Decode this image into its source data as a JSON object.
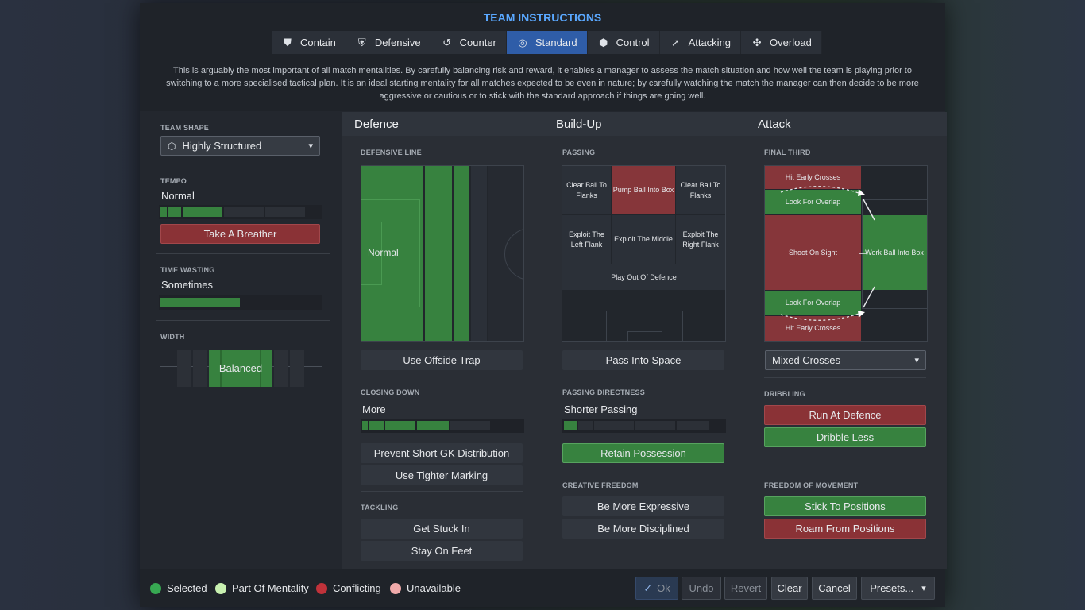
{
  "title": "TEAM INSTRUCTIONS",
  "tabs": [
    {
      "label": "Contain",
      "icon": "contain-icon"
    },
    {
      "label": "Defensive",
      "icon": "shield-icon"
    },
    {
      "label": "Counter",
      "icon": "counter-icon"
    },
    {
      "label": "Standard",
      "icon": "standard-icon",
      "active": true
    },
    {
      "label": "Control",
      "icon": "control-icon"
    },
    {
      "label": "Attacking",
      "icon": "attacking-icon"
    },
    {
      "label": "Overload",
      "icon": "overload-icon"
    }
  ],
  "description": "This is arguably the most important of all match mentalities. By carefully balancing risk and reward, it enables a manager to assess the match situation and how well the team is playing prior to switching to a more specialised tactical plan. It is an ideal starting mentality for all matches expected to be even in nature; by carefully watching the match the manager can then decide to be more aggressive or cautious or to stick with the standard approach if things are going well.",
  "left": {
    "team_shape_label": "TEAM SHAPE",
    "team_shape_value": "Highly Structured",
    "tempo_label": "TEMPO",
    "tempo_value": "Normal",
    "tempo_level": 3,
    "tempo_levels": 5,
    "take_breather": "Take A Breather",
    "time_wasting_label": "TIME WASTING",
    "time_wasting_value": "Sometimes",
    "time_wasting_level": 2,
    "time_wasting_levels": 4,
    "width_label": "WIDTH",
    "width_value": "Balanced"
  },
  "defence": {
    "heading": "Defence",
    "defensive_line_label": "DEFENSIVE LINE",
    "defensive_line_value": "Normal",
    "offside_trap": "Use Offside Trap",
    "closing_down_label": "CLOSING DOWN",
    "closing_down_value": "More",
    "closing_down_level": 4,
    "closing_down_levels": 5,
    "prevent_gk": "Prevent Short GK Distribution",
    "tighter_marking": "Use Tighter Marking",
    "tackling_label": "TACKLING",
    "get_stuck_in": "Get Stuck In",
    "stay_on_feet": "Stay On Feet"
  },
  "buildup": {
    "heading": "Build-Up",
    "passing_label": "PASSING",
    "zones": {
      "clear_left": "Clear Ball To Flanks",
      "pump": "Pump Ball Into Box",
      "clear_right": "Clear Ball To Flanks",
      "exploit_left": "Exploit The Left Flank",
      "exploit_middle": "Exploit The Middle",
      "exploit_right": "Exploit The Right Flank",
      "play_out": "Play Out Of Defence"
    },
    "pass_into_space": "Pass Into Space",
    "passing_directness_label": "PASSING DIRECTNESS",
    "passing_directness_value": "Shorter Passing",
    "passing_directness_level": 1,
    "passing_directness_levels": 5,
    "retain_possession": "Retain Possession",
    "creative_freedom_label": "CREATIVE FREEDOM",
    "be_more_expressive": "Be More Expressive",
    "be_more_disciplined": "Be More Disciplined"
  },
  "attack": {
    "heading": "Attack",
    "final_third_label": "FINAL THIRD",
    "zones": {
      "hit_early_top": "Hit Early Crosses",
      "overlap_top": "Look For Overlap",
      "shoot": "Shoot On Sight",
      "work_ball": "Work Ball Into Box",
      "overlap_bottom": "Look For Overlap",
      "hit_early_bottom": "Hit Early Crosses"
    },
    "crossing_value": "Mixed Crosses",
    "dribbling_label": "DRIBBLING",
    "run_at_defence": "Run At Defence",
    "dribble_less": "Dribble Less",
    "freedom_label": "FREEDOM OF MOVEMENT",
    "stick_to_positions": "Stick To Positions",
    "roam_from_positions": "Roam From Positions"
  },
  "legend": {
    "selected": "Selected",
    "part_of_mentality": "Part Of Mentality",
    "conflicting": "Conflicting",
    "unavailable": "Unavailable"
  },
  "footer": {
    "ok": "Ok",
    "undo": "Undo",
    "revert": "Revert",
    "clear": "Clear",
    "cancel": "Cancel",
    "presets": "Presets..."
  },
  "colors": {
    "accent": "#5aa8ff",
    "active_tab": "#2f5da8",
    "selected": "#37a852",
    "part_of_mentality": "#c8f0b0",
    "conflicting": "#c0323a",
    "unavailable": "#f0aaaa"
  }
}
